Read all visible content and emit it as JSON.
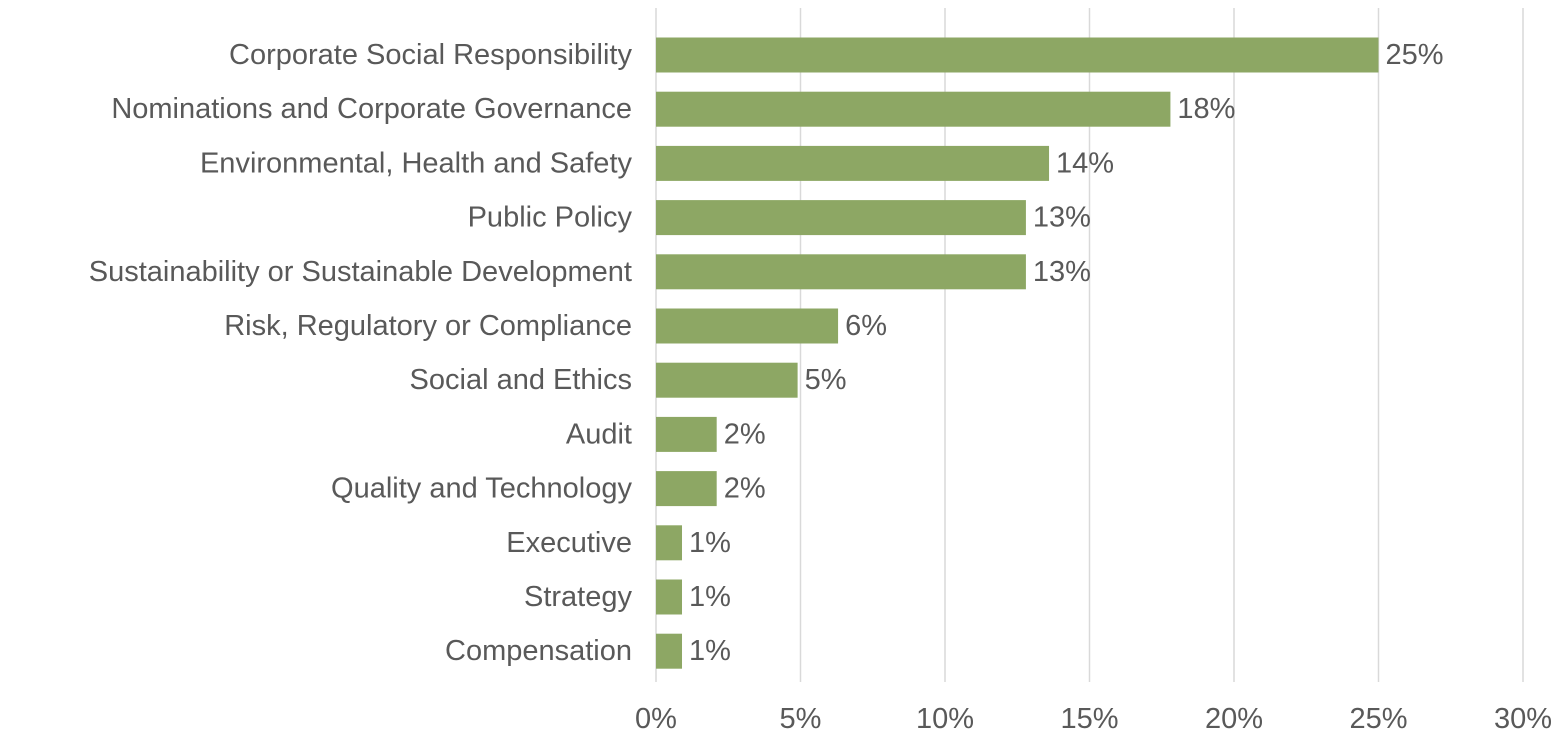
{
  "chart_data": {
    "type": "bar",
    "orientation": "horizontal",
    "title": "",
    "xlabel": "",
    "ylabel": "",
    "categories": [
      "Corporate Social Responsibility",
      "Nominations and Corporate Governance",
      "Environmental, Health and Safety",
      "Public Policy",
      "Sustainability or Sustainable Development",
      "Risk, Regulatory or Compliance",
      "Social and Ethics",
      "Audit",
      "Quality and Technology",
      "Executive",
      "Strategy",
      "Compensation"
    ],
    "values": [
      25,
      17.8,
      13.6,
      12.8,
      12.8,
      6.3,
      4.9,
      2.1,
      2.1,
      0.9,
      0.9,
      0.9
    ],
    "value_labels": [
      "25%",
      "18%",
      "14%",
      "13%",
      "13%",
      "6%",
      "5%",
      "2%",
      "2%",
      "1%",
      "1%",
      "1%"
    ],
    "xlim": [
      0,
      30
    ],
    "x_ticks": [
      0,
      5,
      10,
      15,
      20,
      25,
      30
    ],
    "x_tick_labels": [
      "0%",
      "5%",
      "10%",
      "15%",
      "20%",
      "25%",
      "30%"
    ],
    "grid": "vertical",
    "legend": "none",
    "bar_color": "#8da764",
    "grid_color": "#d9d9d9",
    "text_color": "#595959"
  }
}
